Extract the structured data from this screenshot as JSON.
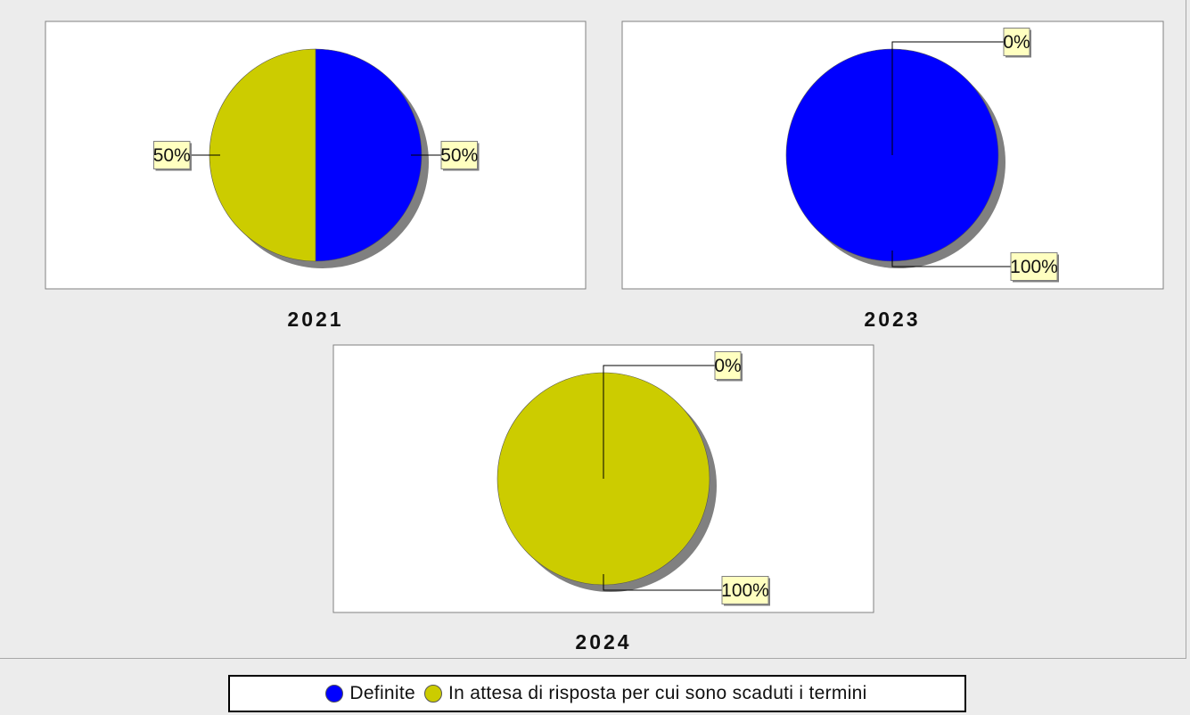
{
  "colors": {
    "definite": "#0000ff",
    "in_attesa": "#cccc00",
    "label_bg": "#ffffc0",
    "shadow": "#808080",
    "panel_bg": "#ffffff"
  },
  "legend": {
    "items": [
      {
        "label": "Definite",
        "color": "#0000ff"
      },
      {
        "label": "In attesa di risposta per cui sono scaduti i termini",
        "color": "#cccc00"
      }
    ]
  },
  "chart_data": [
    {
      "type": "pie",
      "title": "2021",
      "categories": [
        "Definite",
        "In attesa di risposta per cui sono scaduti i termini"
      ],
      "values": [
        50,
        50
      ],
      "labels": [
        "50%",
        "50%"
      ]
    },
    {
      "type": "pie",
      "title": "2023",
      "categories": [
        "Definite",
        "In attesa di risposta per cui sono scaduti i termini"
      ],
      "values": [
        100,
        0
      ],
      "labels": [
        "100%",
        "0%"
      ]
    },
    {
      "type": "pie",
      "title": "2024",
      "categories": [
        "Definite",
        "In attesa di risposta per cui sono scaduti i termini"
      ],
      "values": [
        0,
        100
      ],
      "labels": [
        "0%",
        "100%"
      ]
    }
  ]
}
